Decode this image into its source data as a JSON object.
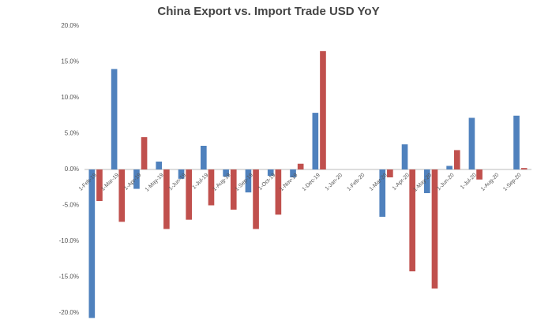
{
  "chart_data": {
    "type": "bar",
    "title": "China Export vs. Import Trade USD YoY",
    "categories": [
      "1-Feb-19",
      "1-Mar-19",
      "1-Apr-19",
      "1-May-19",
      "1-Jun-19",
      "1-Jul-19",
      "1-Aug-19",
      "1-Sep-19",
      "1-Oct-19",
      "1-Nov-19",
      "1-Dec-19",
      "1-Jan-20",
      "1-Feb-20",
      "1-Mar-20",
      "1-Apr-20",
      "1-May-20",
      "1-Jun-20",
      "1-Jul-20",
      "1-Aug-20",
      "1-Sep-20"
    ],
    "series": [
      {
        "color": "#4f81bd",
        "values": [
          -20.7,
          14.0,
          -2.7,
          1.1,
          -1.3,
          3.3,
          -1.0,
          -3.2,
          -0.9,
          -1.1,
          7.9,
          null,
          null,
          -6.6,
          3.5,
          -3.3,
          0.5,
          7.2,
          null,
          7.5
        ]
      },
      {
        "color": "#c0504d",
        "values": [
          -4.4,
          -7.3,
          4.5,
          -8.3,
          -7.0,
          -5.0,
          -5.6,
          -8.3,
          -6.3,
          0.8,
          16.5,
          null,
          null,
          -1.1,
          -14.2,
          -16.6,
          2.7,
          -1.4,
          null,
          0.2
        ]
      }
    ],
    "ylim": [
      -20,
      20
    ],
    "yticks": [
      {
        "value": -20,
        "label": "-20.0%"
      },
      {
        "value": -15,
        "label": "-15.0%"
      },
      {
        "value": -10,
        "label": "-10.0%"
      },
      {
        "value": -5,
        "label": "-5.0%"
      },
      {
        "value": 0,
        "label": "0.0%"
      },
      {
        "value": 5,
        "label": "5.0%"
      },
      {
        "value": 10,
        "label": "10.0%"
      },
      {
        "value": 15,
        "label": "15.0%"
      },
      {
        "value": 20,
        "label": "20.0%"
      }
    ],
    "grid": false
  }
}
